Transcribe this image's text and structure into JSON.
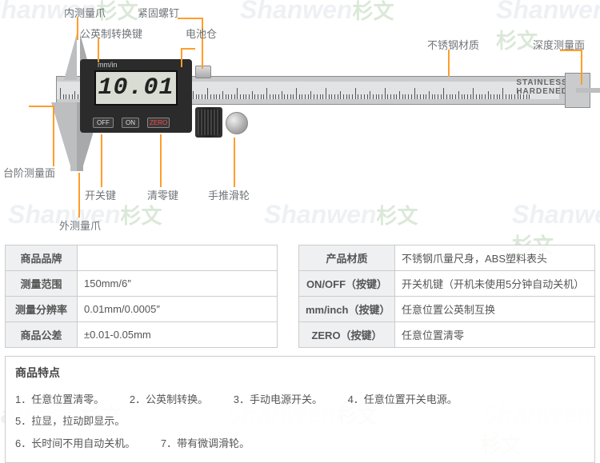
{
  "labels": {
    "inner_jaw": "内测量爪",
    "lock_screw": "紧固螺钉",
    "mm_inch_key": "公英制转换键",
    "battery": "电池仓",
    "stainless": "不锈钢材质",
    "depth_face": "深度测量面",
    "step_face": "台阶测量面",
    "on_off": "开关键",
    "zero_key": "清零键",
    "thumb_roller": "手推滑轮",
    "outer_jaw": "外测量爪"
  },
  "display": {
    "mm_in": "mm/in",
    "reading": "10.01",
    "off": "OFF",
    "on": "ON",
    "zero": "ZERO",
    "ruler_text1": "STAINLESS",
    "ruler_text2": "HARDENED"
  },
  "table_left": {
    "brand_k": "商品品牌",
    "brand_v": "",
    "range_k": "测量范围",
    "range_v": "150mm/6″",
    "res_k": "测量分辨率",
    "res_v": "0.01mm/0.0005″",
    "tol_k": "商品公差",
    "tol_v": "±0.01-0.05mm"
  },
  "table_right": {
    "mat_k": "产品材质",
    "mat_v": "不锈钢爪量尺身，ABS塑料表头",
    "onoff_k": "ON/OFF（按键）",
    "onoff_v": "开关机键（开机未使用5分钟自动关机）",
    "mmin_k": "mm/inch（按键）",
    "mmin_v": "任意位置公英制互换",
    "zero_k": "ZERO（按键）",
    "zero_v": "任意位置清零"
  },
  "features": {
    "title": "商品特点",
    "items": [
      "1．任意位置清零。",
      "2．公英制转换。",
      "3．手动电源开关。",
      "4．任意位置开关电源。",
      "5．拉显，拉动即显示。",
      "6．长时间不用自动关机。",
      "7．带有微调滑轮。"
    ]
  },
  "watermark": {
    "en": "Shanwen",
    "cn": "杉文"
  },
  "colors": {
    "leader": "#ff9d2a"
  }
}
